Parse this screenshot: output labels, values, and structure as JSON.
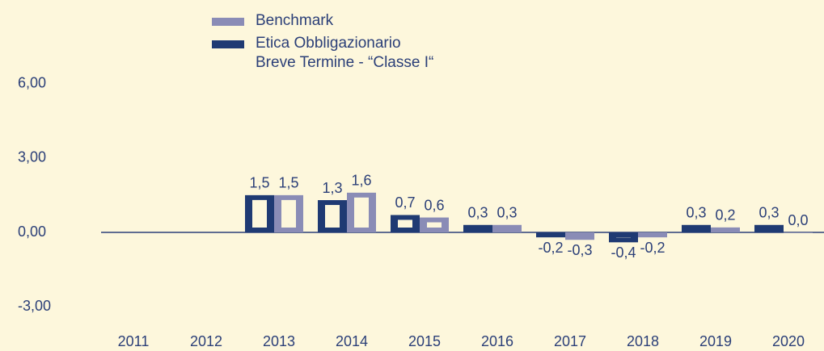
{
  "chart_data": {
    "type": "bar",
    "categories": [
      "2011",
      "2012",
      "2013",
      "2014",
      "2015",
      "2016",
      "2017",
      "2018",
      "2019",
      "2020"
    ],
    "series": [
      {
        "name": "Etica Obbligazionario\nBreve Termine - “Classe I“",
        "color": "#1f3a73",
        "values": [
          null,
          null,
          1.5,
          1.3,
          0.7,
          0.3,
          -0.2,
          -0.4,
          0.3,
          0.3
        ],
        "value_labels": [
          null,
          null,
          "1,5",
          "1,3",
          "0,7",
          "0,3",
          "-0,2",
          "-0,4",
          "0,3",
          "0,3"
        ]
      },
      {
        "name": "Benchmark",
        "color": "#8a8cb6",
        "values": [
          null,
          null,
          1.5,
          1.6,
          0.6,
          0.3,
          -0.3,
          -0.2,
          0.2,
          0.0
        ],
        "value_labels": [
          null,
          null,
          "1,5",
          "1,6",
          "0,6",
          "0,3",
          "-0,3",
          "-0,2",
          "0,2",
          "0,0"
        ]
      }
    ],
    "ylim": [
      -4,
      8
    ],
    "yticks": [
      {
        "value": -3,
        "label": "-3,00"
      },
      {
        "value": 0,
        "label": "0,00"
      },
      {
        "value": 3,
        "label": "3,00"
      },
      {
        "value": 6,
        "label": "6,00"
      }
    ]
  }
}
